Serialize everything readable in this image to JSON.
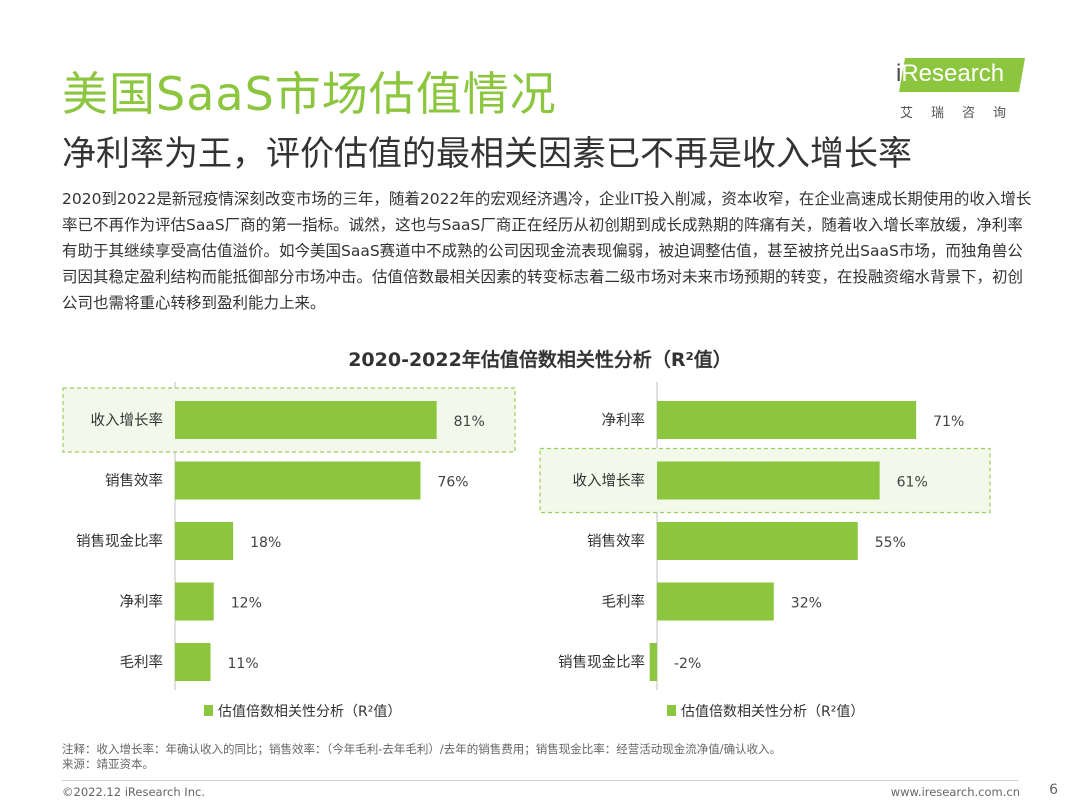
{
  "header": {
    "title": "美国SaaS市场估值情况",
    "subtitle": "净利率为王，评价估值的最相关因素已不再是收入增长率"
  },
  "logo": {
    "brand_i": "i",
    "brand_rest": "Research",
    "sub": "艾瑞咨询",
    "color": "#8cc63f"
  },
  "paragraph": "2020到2022是新冠疫情深刻改变市场的三年，随着2022年的宏观经济遇冷，企业IT投入削减，资本收窄，在企业高速成长期使用的收入增长率已不再作为评估SaaS厂商的第一指标。诚然，这也与SaaS厂商正在经历从初创期到成长成熟期的阵痛有关，随着收入增长率放缓，净利率有助于其继续享受高估值溢价。如今美国SaaS赛道中不成熟的公司因现金流表现偏弱，被迫调整估值，甚至被挤兑出SaaS市场，而独角兽公司因其稳定盈利结构而能抵御部分市场冲击。估值倍数最相关因素的转变标志着二级市场对未来市场预期的转变，在投融资缩水背景下，初创公司也需将重心转移到盈利能力上来。",
  "chart_heading": "2020-2022年估值倍数相关性分析（R²值）",
  "chart_data": [
    {
      "type": "bar",
      "orientation": "horizontal",
      "categories": [
        "收入增长率",
        "销售效率",
        "销售现金比率",
        "净利率",
        "毛利率"
      ],
      "values": [
        81,
        76,
        18,
        12,
        11
      ],
      "value_labels": [
        "81%",
        "76%",
        "18%",
        "12%",
        "11%"
      ],
      "highlight": "收入增长率",
      "legend": "估值倍数相关性分析（R²值）",
      "color": "#8cc63f"
    },
    {
      "type": "bar",
      "orientation": "horizontal",
      "categories": [
        "净利率",
        "收入增长率",
        "销售效率",
        "毛利率",
        "销售现金比率"
      ],
      "values": [
        71,
        61,
        55,
        32,
        -2
      ],
      "value_labels": [
        "71%",
        "61%",
        "55%",
        "32%",
        "-2%"
      ],
      "highlight": "收入增长率",
      "legend": "估值倍数相关性分析（R²值）",
      "color": "#8cc63f"
    }
  ],
  "footer": {
    "note": "注释：收入增长率：年确认收入的同比；销售效率：（今年毛利-去年毛利）/去年的销售费用；销售现金比率：经营活动现金流净值/确认收入。",
    "source": "来源：靖亚资本。",
    "copyright": "©2022.12 iResearch Inc.",
    "website": "www.iresearch.com.cn",
    "page_number": "6"
  }
}
